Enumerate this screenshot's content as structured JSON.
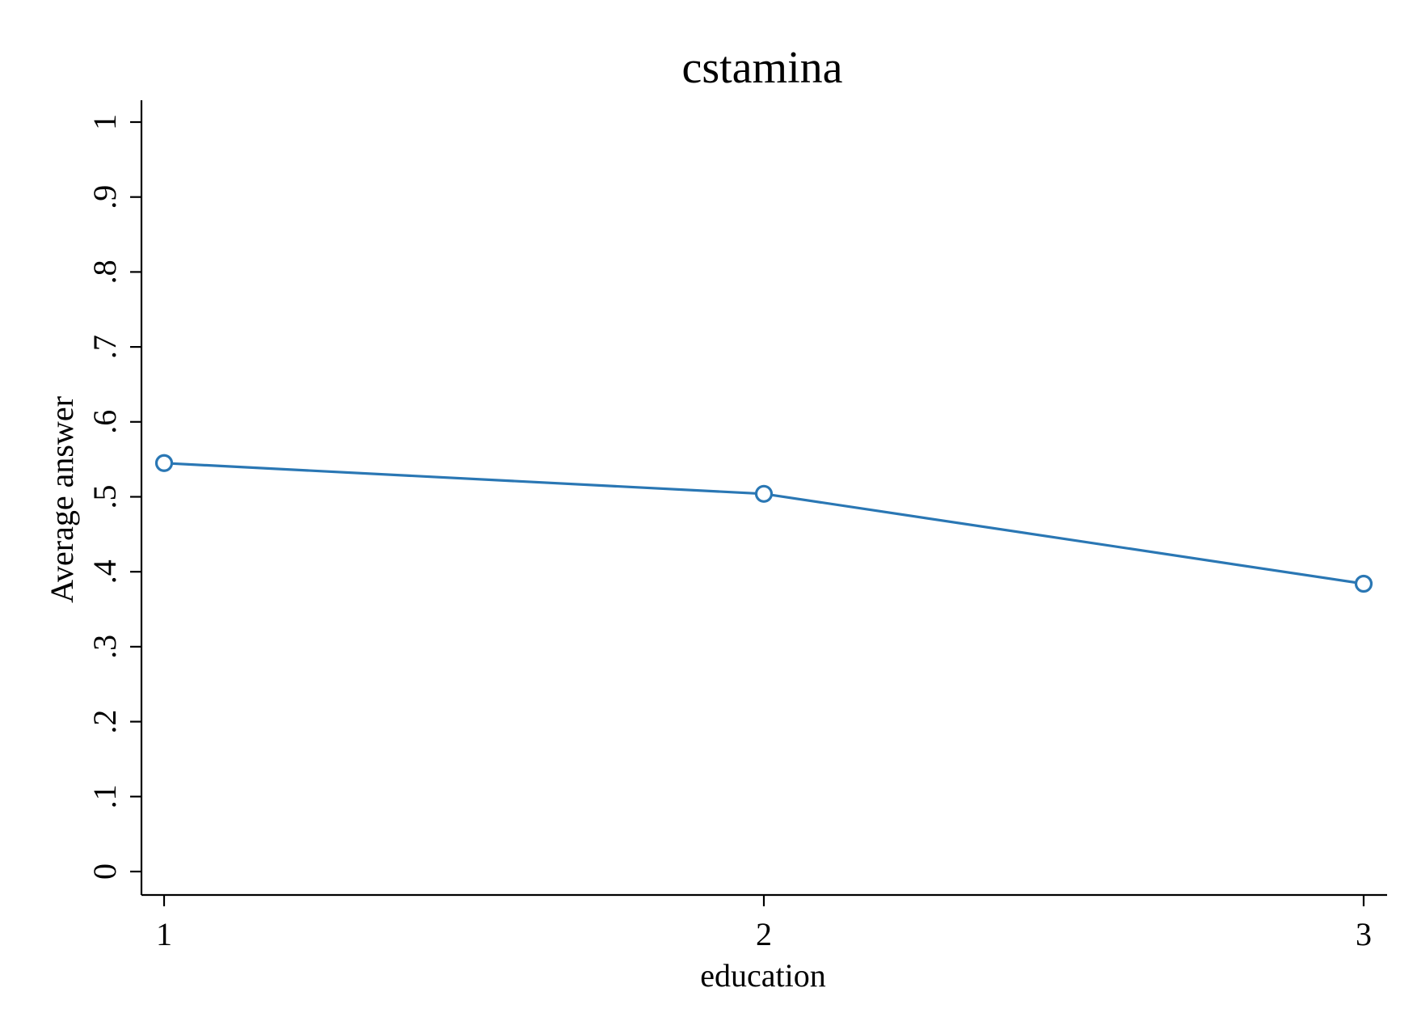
{
  "chart_data": {
    "type": "line",
    "title": "cstamina",
    "xlabel": "education",
    "ylabel": "Average answer",
    "x": [
      1,
      2,
      3
    ],
    "xticks": [
      1,
      2,
      3
    ],
    "xtick_labels": [
      "1",
      "2",
      "3"
    ],
    "xlim": [
      1,
      3
    ],
    "yticks": [
      0,
      0.1,
      0.2,
      0.3,
      0.4,
      0.5,
      0.6,
      0.7,
      0.8,
      0.9,
      1
    ],
    "ytick_labels": [
      "0",
      ".1",
      ".2",
      ".3",
      ".4",
      ".5",
      ".6",
      ".7",
      ".8",
      ".9",
      "1"
    ],
    "ylim": [
      0,
      1
    ],
    "grid": false,
    "legend": "none",
    "series": [
      {
        "values": [
          0.545,
          0.504,
          0.384
        ],
        "color": "#2a77b4",
        "marker": "hollow-circle"
      }
    ]
  }
}
